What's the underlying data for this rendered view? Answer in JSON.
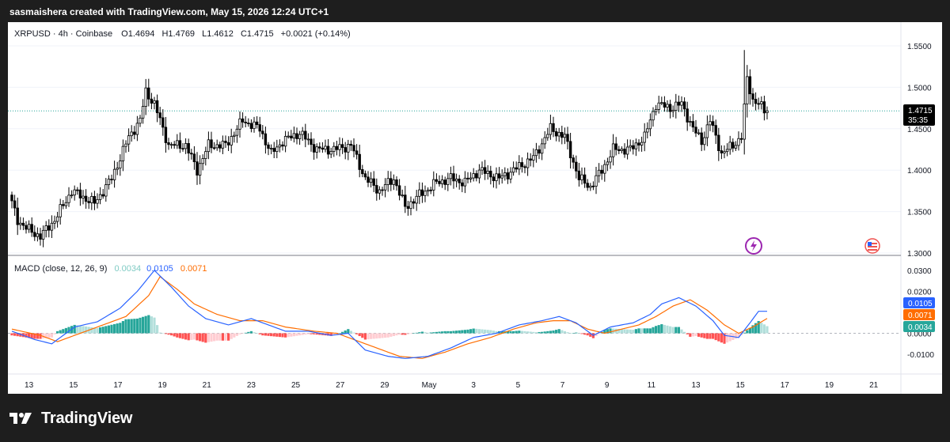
{
  "header": {
    "attribution": "sasmaishera created with TradingView.com, May 15, 2026 12:24 UTC+1"
  },
  "legend": {
    "symbol": "XRPUSD · 4h · Coinbase",
    "o_label": "O",
    "o_value": "1.4694",
    "h_label": "H",
    "h_value": "1.4769",
    "l_label": "L",
    "l_value": "1.4612",
    "c_label": "C",
    "c_value": "1.4715",
    "change": "+0.0021 (+0.14%)"
  },
  "price_axis": {
    "ticks": [
      "1.5500",
      "1.5000",
      "1.4500",
      "1.4000",
      "1.3500",
      "1.3000"
    ],
    "last_price": "1.4715",
    "countdown": "35:35"
  },
  "macd": {
    "label": "MACD (close, 12, 26, 9)",
    "hist_value": "0.0034",
    "macd_value": "0.0105",
    "signal_value": "0.0071",
    "ticks": [
      "0.0300",
      "0.0200",
      "0.0100",
      "0.0000",
      "-0.0100"
    ],
    "badge_macd": "0.0105",
    "badge_signal": "0.0071",
    "badge_hist": "0.0034"
  },
  "time_axis": {
    "labels": [
      "13",
      "15",
      "17",
      "19",
      "21",
      "23",
      "25",
      "27",
      "29",
      "May",
      "3",
      "5",
      "7",
      "9",
      "11",
      "13",
      "15",
      "17",
      "19",
      "21"
    ]
  },
  "footer": {
    "brand": "TradingView"
  },
  "colors": {
    "up": "#26a69a",
    "down": "#ef5350",
    "candle": "#000000",
    "macd_line": "#2962ff",
    "signal_line": "#ff6d00",
    "hist_up_strong": "#26a69a",
    "hist_up_weak": "#b2dfdb",
    "hist_down_strong": "#ff5252",
    "hist_down_weak": "#ffcdd2"
  },
  "chart_data": [
    {
      "type": "candlestick",
      "symbol": "XRPUSD",
      "interval": "4h",
      "ylim": [
        1.3,
        1.56
      ],
      "x_labels": [
        "13",
        "15",
        "17",
        "19",
        "21",
        "23",
        "25",
        "27",
        "29",
        "May",
        "3",
        "5",
        "7",
        "9",
        "11",
        "13",
        "15"
      ],
      "anchors": [
        [
          0,
          1.37
        ],
        [
          3,
          1.34
        ],
        [
          6,
          1.33
        ],
        [
          11,
          1.32
        ],
        [
          16,
          1.34
        ],
        [
          22,
          1.375
        ],
        [
          30,
          1.36
        ],
        [
          36,
          1.39
        ],
        [
          42,
          1.44
        ],
        [
          46,
          1.46
        ],
        [
          48,
          1.495
        ],
        [
          51,
          1.48
        ],
        [
          56,
          1.43
        ],
        [
          62,
          1.43
        ],
        [
          66,
          1.4
        ],
        [
          70,
          1.43
        ],
        [
          76,
          1.43
        ],
        [
          82,
          1.46
        ],
        [
          88,
          1.45
        ],
        [
          92,
          1.42
        ],
        [
          96,
          1.435
        ],
        [
          102,
          1.445
        ],
        [
          108,
          1.425
        ],
        [
          114,
          1.425
        ],
        [
          120,
          1.43
        ],
        [
          125,
          1.39
        ],
        [
          130,
          1.375
        ],
        [
          135,
          1.39
        ],
        [
          139,
          1.355
        ],
        [
          144,
          1.37
        ],
        [
          150,
          1.385
        ],
        [
          155,
          1.39
        ],
        [
          160,
          1.385
        ],
        [
          165,
          1.4
        ],
        [
          172,
          1.39
        ],
        [
          177,
          1.4
        ],
        [
          184,
          1.415
        ],
        [
          190,
          1.45
        ],
        [
          195,
          1.44
        ],
        [
          200,
          1.39
        ],
        [
          204,
          1.38
        ],
        [
          208,
          1.4
        ],
        [
          212,
          1.425
        ],
        [
          218,
          1.425
        ],
        [
          223,
          1.44
        ],
        [
          227,
          1.48
        ],
        [
          232,
          1.475
        ],
        [
          236,
          1.48
        ],
        [
          240,
          1.45
        ],
        [
          243,
          1.435
        ],
        [
          246,
          1.46
        ],
        [
          250,
          1.42
        ],
        [
          254,
          1.43
        ],
        [
          257,
          1.44
        ],
        [
          259,
          1.51
        ],
        [
          261,
          1.485
        ],
        [
          263,
          1.48
        ],
        [
          265,
          1.4715
        ]
      ],
      "last": {
        "open": 1.4694,
        "high": 1.4769,
        "low": 1.4612,
        "close": 1.4715
      }
    },
    {
      "type": "line+bar",
      "title": "MACD (close, 12, 26, 9)",
      "ylim": [
        -0.015,
        0.034
      ],
      "macd_anchors": [
        [
          0,
          0.001
        ],
        [
          8,
          -0.003
        ],
        [
          14,
          -0.005
        ],
        [
          22,
          0.003
        ],
        [
          30,
          0.0055
        ],
        [
          38,
          0.012
        ],
        [
          44,
          0.02
        ],
        [
          50,
          0.03
        ],
        [
          56,
          0.022
        ],
        [
          62,
          0.013
        ],
        [
          68,
          0.007
        ],
        [
          76,
          0.004
        ],
        [
          84,
          0.007
        ],
        [
          90,
          0.004
        ],
        [
          96,
          0.001
        ],
        [
          104,
          0.001
        ],
        [
          112,
          -0.001
        ],
        [
          118,
          0.0
        ],
        [
          124,
          -0.008
        ],
        [
          132,
          -0.011
        ],
        [
          138,
          -0.012
        ],
        [
          146,
          -0.011
        ],
        [
          154,
          -0.007
        ],
        [
          162,
          -0.002
        ],
        [
          170,
          0.0
        ],
        [
          178,
          0.004
        ],
        [
          186,
          0.006
        ],
        [
          192,
          0.008
        ],
        [
          198,
          0.005
        ],
        [
          204,
          -0.001
        ],
        [
          210,
          0.003
        ],
        [
          218,
          0.005
        ],
        [
          224,
          0.009
        ],
        [
          228,
          0.014
        ],
        [
          234,
          0.017
        ],
        [
          240,
          0.013
        ],
        [
          246,
          0.006
        ],
        [
          250,
          -0.001
        ],
        [
          255,
          -0.002
        ],
        [
          259,
          0.005
        ],
        [
          262,
          0.0105
        ],
        [
          265,
          0.0105
        ]
      ],
      "signal_anchors": [
        [
          0,
          0.002
        ],
        [
          10,
          -0.001
        ],
        [
          16,
          -0.004
        ],
        [
          24,
          0.0
        ],
        [
          32,
          0.004
        ],
        [
          40,
          0.008
        ],
        [
          48,
          0.018
        ],
        [
          52,
          0.027
        ],
        [
          58,
          0.021
        ],
        [
          64,
          0.014
        ],
        [
          72,
          0.009
        ],
        [
          80,
          0.006
        ],
        [
          88,
          0.006
        ],
        [
          96,
          0.003
        ],
        [
          106,
          0.001
        ],
        [
          114,
          0.0
        ],
        [
          120,
          -0.003
        ],
        [
          128,
          -0.007
        ],
        [
          136,
          -0.011
        ],
        [
          144,
          -0.012
        ],
        [
          152,
          -0.009
        ],
        [
          160,
          -0.005
        ],
        [
          168,
          -0.002
        ],
        [
          176,
          0.002
        ],
        [
          184,
          0.005
        ],
        [
          190,
          0.006
        ],
        [
          196,
          0.006
        ],
        [
          202,
          0.002
        ],
        [
          208,
          0.0
        ],
        [
          214,
          0.002
        ],
        [
          220,
          0.004
        ],
        [
          226,
          0.008
        ],
        [
          232,
          0.013
        ],
        [
          238,
          0.016
        ],
        [
          244,
          0.011
        ],
        [
          250,
          0.004
        ],
        [
          255,
          0.0
        ],
        [
          260,
          0.003
        ],
        [
          265,
          0.0071
        ]
      ],
      "histogram_last": 0.0034
    }
  ]
}
